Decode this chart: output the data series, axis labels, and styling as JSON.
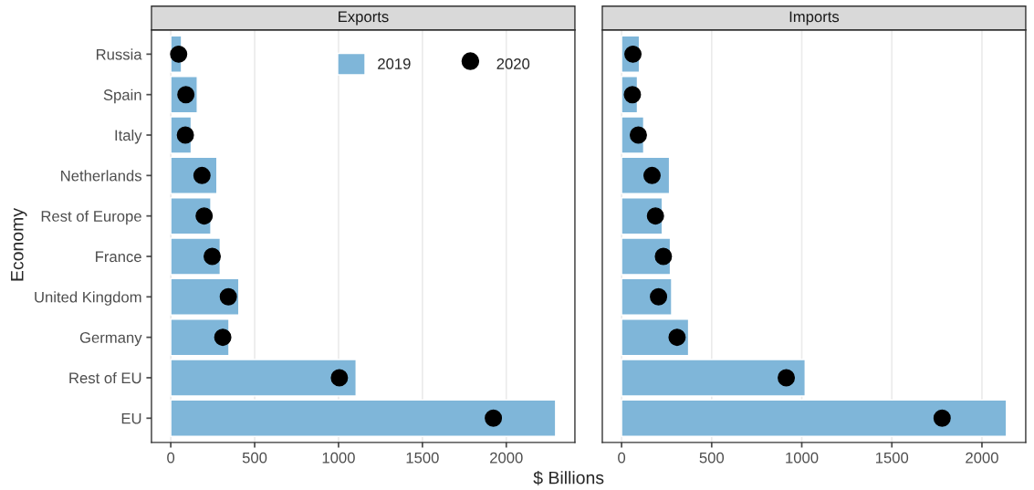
{
  "chart_data": [
    {
      "type": "bar",
      "title": "Exports",
      "xlabel": "$ Billions",
      "ylabel": "Economy",
      "orientation": "horizontal",
      "categories": [
        "Russia",
        "Spain",
        "Italy",
        "Netherlands",
        "Rest of Europe",
        "France",
        "United Kingdom",
        "Germany",
        "Rest of EU",
        "EU"
      ],
      "series": [
        {
          "name": "2019",
          "color": "#7fb6d9",
          "values": [
            64,
            158,
            122,
            275,
            239,
            295,
            406,
            347,
            1105,
            2294
          ]
        },
        {
          "name": "2020",
          "type": "scatter",
          "marker": "circle",
          "color": "#000000",
          "values": [
            47,
            90,
            87,
            186,
            199,
            247,
            343,
            310,
            1005,
            1923
          ]
        }
      ],
      "xlim": [
        -115,
        2409
      ],
      "xticks": [
        0,
        500,
        1000,
        1500,
        2000
      ],
      "grid": "x",
      "legend": "top right"
    },
    {
      "type": "bar",
      "title": "Imports",
      "orientation": "horizontal",
      "tick_labels": "x",
      "series": [
        {
          "color": "#7fb6d9",
          "values": [
            99,
            88,
            123,
            266,
            226,
            271,
            278,
            372,
            1019,
            2136
          ]
        },
        {
          "type": "scatter",
          "marker": "circle",
          "color": "#000000",
          "values": [
            63,
            60,
            93,
            169,
            188,
            232,
            205,
            308,
            914,
            1779
          ]
        }
      ],
      "xlim": [
        -107,
        2243
      ],
      "xticks": [
        0,
        500,
        1000,
        1500,
        2000
      ],
      "grid": "x"
    }
  ]
}
